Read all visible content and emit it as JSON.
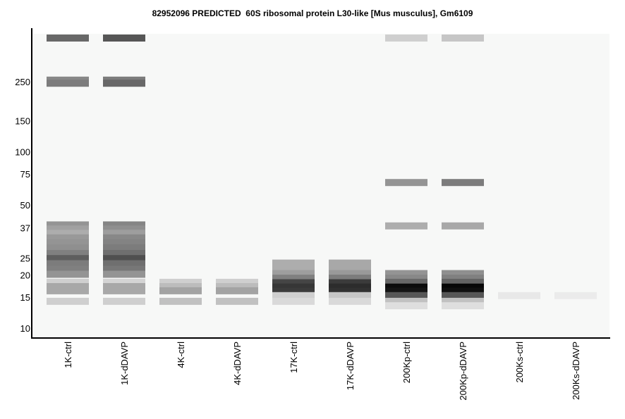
{
  "chart_data": {
    "type": "heatmap",
    "title": "82952096 PREDICTED  60S ribosomal protein L30-like [Mus musculus], Gm6109",
    "xlabel": "",
    "ylabel": "",
    "y_scale": "log",
    "ylim": [
      9,
      400
    ],
    "y_ticks": [
      "250",
      "150",
      "100",
      "75",
      "50",
      "37",
      "25",
      "20",
      "15",
      "10"
    ],
    "y_tick_values": [
      250,
      150,
      100,
      75,
      50,
      37,
      25,
      20,
      15,
      10
    ],
    "lanes": [
      "1K-ctrl",
      "1K-dDAVP",
      "4K-ctrl",
      "4K-dDAVP",
      "17K-ctrl",
      "17K-dDAVP",
      "200Kp-ctrl",
      "200Kp-dDAVP",
      "200Ks-ctrl",
      "200Ks-dDAVP"
    ],
    "band_intensity_scale": "0 = white background, 1 = black",
    "bands": [
      [
        {
          "mw": "top",
          "i": 0.58
        },
        {
          "mw": 255,
          "i": 0.45
        },
        {
          "mw": 245,
          "i": 0.5
        },
        {
          "mw": 38.5,
          "i": 0.4
        },
        {
          "mw": 36.5,
          "i": 0.35
        },
        {
          "mw": 34.5,
          "i": 0.3
        },
        {
          "mw": 32.5,
          "i": 0.38
        },
        {
          "mw": 30.5,
          "i": 0.4
        },
        {
          "mw": 28.5,
          "i": 0.42
        },
        {
          "mw": 26.5,
          "i": 0.48
        },
        {
          "mw": 24.8,
          "i": 0.62
        },
        {
          "mw": 23.2,
          "i": 0.5
        },
        {
          "mw": 21.6,
          "i": 0.48
        },
        {
          "mw": 20.2,
          "i": 0.4
        },
        {
          "mw": 18.2,
          "i": 0.16
        },
        {
          "mw": 17.2,
          "i": 0.32
        },
        {
          "mw": 16.3,
          "i": 0.32
        },
        {
          "mw": 14.2,
          "i": 0.16
        }
      ],
      [
        {
          "mw": "top",
          "i": 0.65
        },
        {
          "mw": 255,
          "i": 0.5
        },
        {
          "mw": 245,
          "i": 0.58
        },
        {
          "mw": 38.5,
          "i": 0.46
        },
        {
          "mw": 36.5,
          "i": 0.42
        },
        {
          "mw": 34.5,
          "i": 0.36
        },
        {
          "mw": 32.5,
          "i": 0.45
        },
        {
          "mw": 30.5,
          "i": 0.47
        },
        {
          "mw": 28.5,
          "i": 0.5
        },
        {
          "mw": 26.5,
          "i": 0.55
        },
        {
          "mw": 24.8,
          "i": 0.68
        },
        {
          "mw": 23.2,
          "i": 0.55
        },
        {
          "mw": 21.6,
          "i": 0.52
        },
        {
          "mw": 20.2,
          "i": 0.4
        },
        {
          "mw": 18.2,
          "i": 0.14
        },
        {
          "mw": 17.2,
          "i": 0.32
        },
        {
          "mw": 16.3,
          "i": 0.32
        },
        {
          "mw": 14.2,
          "i": 0.16
        }
      ],
      [
        {
          "mw": 18.2,
          "i": 0.16
        },
        {
          "mw": 17.2,
          "i": 0.24
        },
        {
          "mw": 16.3,
          "i": 0.34
        },
        {
          "mw": 14.2,
          "i": 0.22
        }
      ],
      [
        {
          "mw": 18.2,
          "i": 0.16
        },
        {
          "mw": 17.2,
          "i": 0.24
        },
        {
          "mw": 16.3,
          "i": 0.34
        },
        {
          "mw": 14.2,
          "i": 0.22
        }
      ],
      [
        {
          "mw": 23.4,
          "i": 0.3
        },
        {
          "mw": 21.8,
          "i": 0.3
        },
        {
          "mw": 20.4,
          "i": 0.36
        },
        {
          "mw": 19.2,
          "i": 0.48
        },
        {
          "mw": 18.1,
          "i": 0.72
        },
        {
          "mw": 17.1,
          "i": 0.78
        },
        {
          "mw": 16.2,
          "i": 0.76
        },
        {
          "mw": 15.3,
          "i": 0.16
        },
        {
          "mw": 14.2,
          "i": 0.12
        }
      ],
      [
        {
          "mw": 23.4,
          "i": 0.32
        },
        {
          "mw": 21.8,
          "i": 0.32
        },
        {
          "mw": 20.4,
          "i": 0.38
        },
        {
          "mw": 19.2,
          "i": 0.5
        },
        {
          "mw": 18.1,
          "i": 0.76
        },
        {
          "mw": 17.1,
          "i": 0.82
        },
        {
          "mw": 16.2,
          "i": 0.8
        },
        {
          "mw": 15.3,
          "i": 0.2
        },
        {
          "mw": 14.2,
          "i": 0.12
        }
      ],
      [
        {
          "mw": "top",
          "i": 0.16
        },
        {
          "mw": 67,
          "i": 0.4
        },
        {
          "mw": 38,
          "i": 0.3
        },
        {
          "mw": 20.4,
          "i": 0.4
        },
        {
          "mw": 19.2,
          "i": 0.45
        },
        {
          "mw": 18.2,
          "i": 0.58
        },
        {
          "mw": 17.1,
          "i": 0.95
        },
        {
          "mw": 16.2,
          "i": 0.92
        },
        {
          "mw": 15.3,
          "i": 0.65
        },
        {
          "mw": 14.2,
          "i": 0.22
        },
        {
          "mw": 13.4,
          "i": 0.1
        }
      ],
      [
        {
          "mw": "top",
          "i": 0.2
        },
        {
          "mw": 67,
          "i": 0.5
        },
        {
          "mw": 38,
          "i": 0.32
        },
        {
          "mw": 20.4,
          "i": 0.42
        },
        {
          "mw": 19.2,
          "i": 0.48
        },
        {
          "mw": 18.2,
          "i": 0.6
        },
        {
          "mw": 17.1,
          "i": 0.97
        },
        {
          "mw": 16.2,
          "i": 0.94
        },
        {
          "mw": 15.3,
          "i": 0.65
        },
        {
          "mw": 14.2,
          "i": 0.22
        },
        {
          "mw": 13.4,
          "i": 0.1
        }
      ],
      [
        {
          "mw": 15.3,
          "i": 0.06
        }
      ],
      [
        {
          "mw": 15.3,
          "i": 0.05
        }
      ]
    ]
  }
}
